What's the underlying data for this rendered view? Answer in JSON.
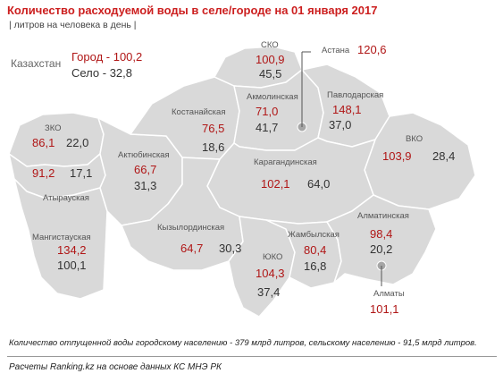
{
  "title": "Количество расходуемой воды в селе/городе на 01 января 2017",
  "subtitle": "| литров на человека в день |",
  "kazakhstan": {
    "name": "Казахстан",
    "city": "Город - 100,2",
    "rural": "Село - 32,8"
  },
  "regions": {
    "sko": {
      "name": "СКО",
      "city": "100,9",
      "rural": "45,5"
    },
    "astana": {
      "name": "Астана",
      "city": "120,6"
    },
    "akmolinskaya": {
      "name": "Акмолинская",
      "city": "71,0",
      "rural": "41,7"
    },
    "pavlodarskaya": {
      "name": "Павлодарская",
      "city": "148,1",
      "rural": "37,0"
    },
    "kostanayskaya": {
      "name": "Костанайская",
      "city": "76,5",
      "rural": "18,6"
    },
    "zko": {
      "name": "ЗКО",
      "city": "86,1",
      "rural": "22,0"
    },
    "atyrauskaya": {
      "name": "Атырауская",
      "city": "91,2",
      "rural": "17,1"
    },
    "aktyubinskaya": {
      "name": "Актюбинская",
      "city": "66,7",
      "rural": "31,3"
    },
    "karagandinskaya": {
      "name": "Карагандинская",
      "city": "102,1",
      "rural": "64,0"
    },
    "vko": {
      "name": "ВКО",
      "city": "103,9",
      "rural": "28,4"
    },
    "mangistauskaya": {
      "name": "Мангистауская",
      "city": "134,2",
      "rural": "100,1"
    },
    "kyzylordinskaya": {
      "name": "Кызылординская",
      "city": "64,7",
      "rural": "30,3"
    },
    "yuko": {
      "name": "ЮКО",
      "city": "104,3",
      "rural": "37,4"
    },
    "zhambylskaya": {
      "name": "Жамбылская",
      "city": "80,4",
      "rural": "16,8"
    },
    "almatinskaya": {
      "name": "Алматинская",
      "city": "98,4",
      "rural": "20,2"
    },
    "almaty": {
      "name": "Алматы",
      "city": "101,1"
    }
  },
  "colors": {
    "region_fill": "#d9d9d9",
    "region_border": "#ffffff",
    "city_value": "#b01616",
    "rural_value": "#333333",
    "title": "#cc1f1f"
  },
  "footnote": "Количество отпущенной воды городскому населению - 379 млрд литров, сельскому населению - 91,5 млрд литров.",
  "source": "Расчеты Ranking.kz на основе данных КС МНЭ РК"
}
